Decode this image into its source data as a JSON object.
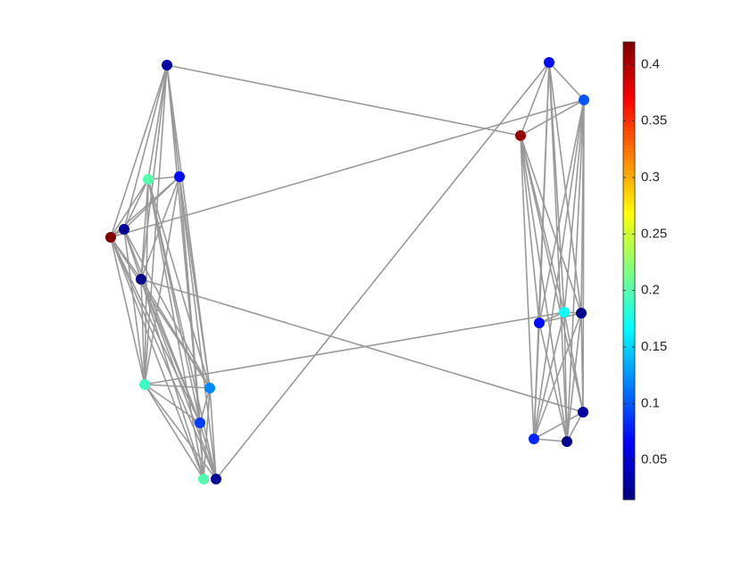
{
  "chart_data": {
    "type": "network",
    "values": [
      0.03,
      0.2,
      0.07,
      0.025,
      0.42,
      0.02,
      0.19,
      0.12,
      0.09,
      0.2,
      0.025,
      0.07,
      0.1,
      0.41,
      0.07,
      0.17,
      0.02,
      0.03,
      0.08,
      0.02
    ],
    "colormap": "jet",
    "clim": [
      0.015,
      0.42
    ],
    "cticks": [
      0.05,
      0.1,
      0.15,
      0.2,
      0.25,
      0.3,
      0.35,
      0.4
    ]
  }
}
